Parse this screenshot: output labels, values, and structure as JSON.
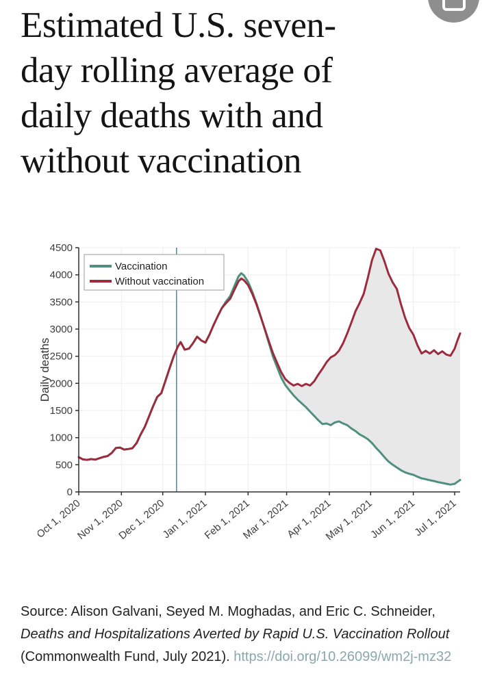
{
  "header": {
    "title_lines": [
      "Estimated U.S. seven-",
      "day rolling average of",
      "daily deaths with and",
      "without vaccination"
    ],
    "action_icon": "save-icon",
    "action_icon_bg": "#8e8e8e"
  },
  "chart_data": {
    "type": "line",
    "title": "",
    "xlabel": "",
    "ylabel": "Daily deaths",
    "ylim": [
      0,
      4500
    ],
    "yticks": [
      0,
      500,
      1000,
      1500,
      2000,
      2500,
      3000,
      3500,
      4000,
      4500
    ],
    "xlim_days": [
      0,
      277
    ],
    "xticks": [
      {
        "day": 0,
        "label": "Oct 1, 2020"
      },
      {
        "day": 31,
        "label": "Nov 1, 2020"
      },
      {
        "day": 61,
        "label": "Dec 1, 2020"
      },
      {
        "day": 92,
        "label": "Jan 1, 2021"
      },
      {
        "day": 123,
        "label": "Feb 1, 2021"
      },
      {
        "day": 151,
        "label": "Mar 1, 2021"
      },
      {
        "day": 182,
        "label": "Apr 1, 2021"
      },
      {
        "day": 212,
        "label": "May 1, 2021"
      },
      {
        "day": 243,
        "label": "Jun 1, 2021"
      },
      {
        "day": 273,
        "label": "Jul 1, 2021"
      }
    ],
    "grid": true,
    "grid_color": "#ededed",
    "axis_color": "#2e2e2e",
    "tick_label_color": "#3c3c3c",
    "fill_color": "#e8e8e8",
    "legend_position": "upper-left",
    "vline": {
      "day": 71,
      "color": "#4d93a6"
    },
    "x_days": [
      0,
      3,
      6,
      9,
      12,
      15,
      18,
      21,
      24,
      27,
      30,
      33,
      36,
      39,
      42,
      45,
      48,
      51,
      54,
      57,
      60,
      63,
      66,
      69,
      72,
      74,
      77,
      80,
      83,
      86,
      89,
      92,
      95,
      98,
      101,
      104,
      107,
      110,
      113,
      116,
      118,
      120,
      123,
      126,
      129,
      132,
      135,
      138,
      141,
      144,
      147,
      150,
      153,
      156,
      159,
      162,
      165,
      168,
      171,
      174,
      177,
      180,
      183,
      186,
      189,
      192,
      195,
      198,
      201,
      204,
      207,
      210,
      213,
      216,
      219,
      222,
      225,
      228,
      231,
      234,
      237,
      240,
      243,
      246,
      249,
      252,
      255,
      258,
      261,
      264,
      267,
      270,
      273,
      275,
      277
    ],
    "series": [
      {
        "name": "Vaccination",
        "color": "#4f8f7d",
        "values": [
          640,
          600,
          590,
          605,
          595,
          620,
          645,
          660,
          720,
          810,
          815,
          780,
          790,
          805,
          900,
          1060,
          1200,
          1390,
          1580,
          1750,
          1820,
          2050,
          2280,
          2500,
          2680,
          2760,
          2620,
          2640,
          2740,
          2860,
          2790,
          2750,
          2900,
          3080,
          3240,
          3390,
          3510,
          3610,
          3790,
          3970,
          4030,
          3990,
          3870,
          3690,
          3480,
          3250,
          3000,
          2750,
          2500,
          2300,
          2110,
          1970,
          1870,
          1780,
          1700,
          1630,
          1560,
          1480,
          1400,
          1320,
          1250,
          1260,
          1230,
          1280,
          1300,
          1260,
          1230,
          1170,
          1120,
          1060,
          1020,
          970,
          900,
          810,
          730,
          640,
          560,
          500,
          450,
          400,
          360,
          335,
          315,
          280,
          250,
          235,
          215,
          200,
          180,
          165,
          150,
          135,
          150,
          185,
          220
        ]
      },
      {
        "name": "Without vaccination",
        "color": "#9c2b3e",
        "values": [
          640,
          600,
          590,
          605,
          595,
          620,
          645,
          660,
          720,
          810,
          815,
          780,
          790,
          805,
          900,
          1060,
          1200,
          1390,
          1580,
          1750,
          1820,
          2050,
          2280,
          2500,
          2680,
          2760,
          2620,
          2640,
          2740,
          2860,
          2790,
          2750,
          2900,
          3080,
          3240,
          3390,
          3480,
          3560,
          3720,
          3880,
          3930,
          3900,
          3810,
          3650,
          3460,
          3240,
          3010,
          2780,
          2560,
          2380,
          2210,
          2080,
          2010,
          1960,
          1990,
          1950,
          1990,
          1960,
          2040,
          2160,
          2270,
          2390,
          2480,
          2520,
          2600,
          2740,
          2920,
          3120,
          3330,
          3480,
          3650,
          3950,
          4270,
          4480,
          4450,
          4250,
          4020,
          3860,
          3740,
          3460,
          3210,
          3020,
          2900,
          2700,
          2550,
          2600,
          2550,
          2610,
          2540,
          2590,
          2530,
          2510,
          2640,
          2790,
          2920
        ]
      }
    ]
  },
  "source": {
    "prefix": "Source: Alison Galvani, Seyed M. Moghadas, and Eric C. Schneider, ",
    "italic_title": "Deaths and Hospitalizations Averted by Rapid U.S. Vaccination Rollout",
    "suffix": " (Commonwealth Fund, July 2021). ",
    "link": "https://doi.org/10.26099/wm2j-mz32",
    "link_color": "#8aa8ab"
  }
}
